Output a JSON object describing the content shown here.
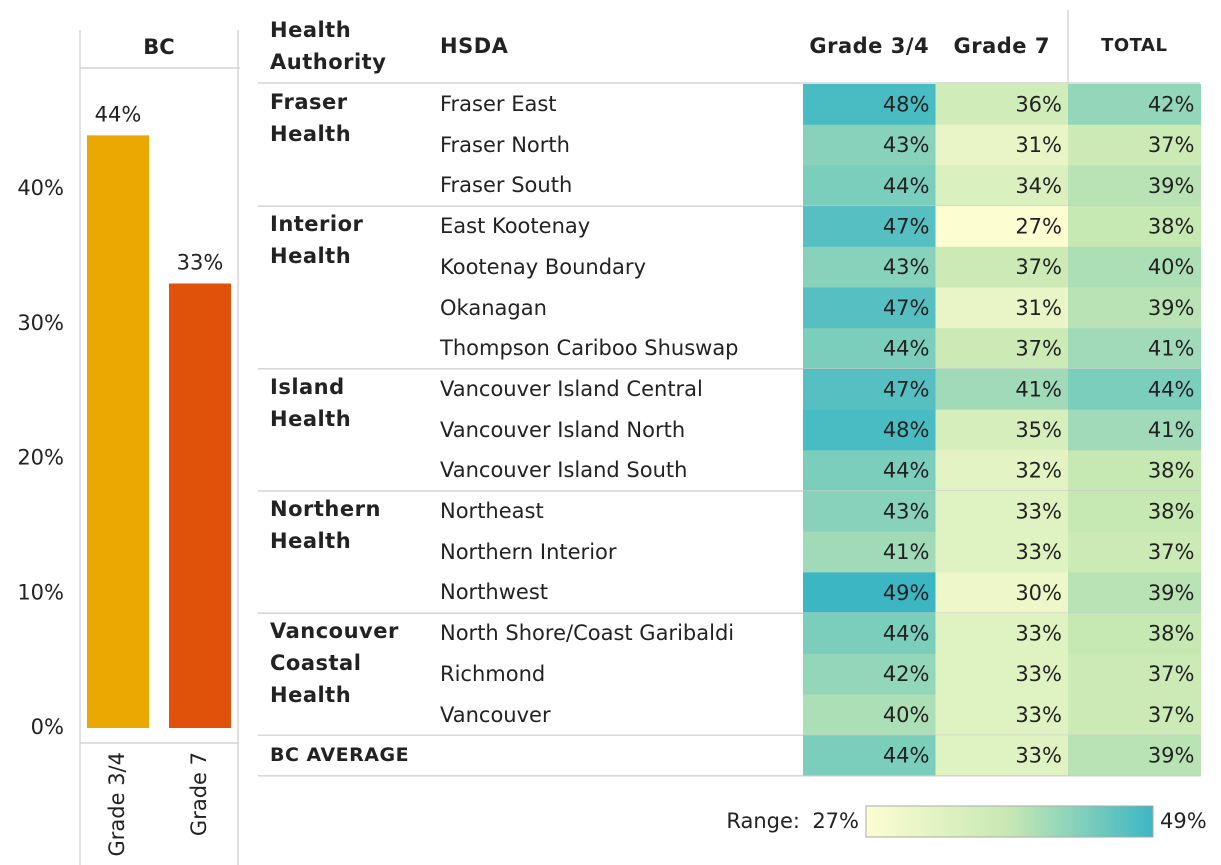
{
  "chart_data": [
    {
      "type": "bar",
      "title": "BC",
      "categories": [
        "Grade 3/4",
        "Grade 7"
      ],
      "values": [
        44,
        33
      ],
      "value_labels": [
        "44%",
        "33%"
      ],
      "colors": [
        "#eaa800",
        "#e0520a"
      ],
      "ylim": [
        0,
        49
      ],
      "yticks": [
        {
          "value": 0,
          "label": "0%"
        },
        {
          "value": 10,
          "label": "10%"
        },
        {
          "value": 20,
          "label": "20%"
        },
        {
          "value": 30,
          "label": "30%"
        },
        {
          "value": 40,
          "label": "40%"
        }
      ]
    },
    {
      "type": "heatmap",
      "header": {
        "group": "Health Authority",
        "row": "HSDA",
        "columns": [
          "Grade 3/4",
          "Grade 7",
          "TOTAL"
        ]
      },
      "groups": [
        {
          "name": "Fraser Health",
          "rows": [
            {
              "name": "Fraser East",
              "values": [
                48,
                36,
                42
              ],
              "value_labels": [
                "48%",
                "36%",
                "42%"
              ]
            },
            {
              "name": "Fraser North",
              "values": [
                43,
                31,
                37
              ],
              "value_labels": [
                "43%",
                "31%",
                "37%"
              ]
            },
            {
              "name": "Fraser South",
              "values": [
                44,
                34,
                39
              ],
              "value_labels": [
                "44%",
                "34%",
                "39%"
              ]
            }
          ]
        },
        {
          "name": "Interior Health",
          "rows": [
            {
              "name": "East Kootenay",
              "values": [
                47,
                27,
                38
              ],
              "value_labels": [
                "47%",
                "27%",
                "38%"
              ]
            },
            {
              "name": "Kootenay Boundary",
              "values": [
                43,
                37,
                40
              ],
              "value_labels": [
                "43%",
                "37%",
                "40%"
              ]
            },
            {
              "name": "Okanagan",
              "values": [
                47,
                31,
                39
              ],
              "value_labels": [
                "47%",
                "31%",
                "39%"
              ]
            },
            {
              "name": "Thompson Cariboo Shuswap",
              "values": [
                44,
                37,
                41
              ],
              "value_labels": [
                "44%",
                "37%",
                "41%"
              ]
            }
          ]
        },
        {
          "name": "Island Health",
          "rows": [
            {
              "name": "Vancouver Island Central",
              "values": [
                47,
                41,
                44
              ],
              "value_labels": [
                "47%",
                "41%",
                "44%"
              ]
            },
            {
              "name": "Vancouver Island North",
              "values": [
                48,
                35,
                41
              ],
              "value_labels": [
                "48%",
                "35%",
                "41%"
              ]
            },
            {
              "name": "Vancouver Island South",
              "values": [
                44,
                32,
                38
              ],
              "value_labels": [
                "44%",
                "32%",
                "38%"
              ]
            }
          ]
        },
        {
          "name": "Northern Health",
          "rows": [
            {
              "name": "Northeast",
              "values": [
                43,
                33,
                38
              ],
              "value_labels": [
                "43%",
                "33%",
                "38%"
              ]
            },
            {
              "name": "Northern Interior",
              "values": [
                41,
                33,
                37
              ],
              "value_labels": [
                "41%",
                "33%",
                "37%"
              ]
            },
            {
              "name": "Northwest",
              "values": [
                49,
                30,
                39
              ],
              "value_labels": [
                "49%",
                "30%",
                "39%"
              ]
            }
          ]
        },
        {
          "name": "Vancouver Coastal Health",
          "rows": [
            {
              "name": "North Shore/Coast Garibaldi",
              "values": [
                44,
                33,
                38
              ],
              "value_labels": [
                "44%",
                "33%",
                "38%"
              ]
            },
            {
              "name": "Richmond",
              "values": [
                42,
                33,
                37
              ],
              "value_labels": [
                "42%",
                "33%",
                "37%"
              ]
            },
            {
              "name": "Vancouver",
              "values": [
                40,
                33,
                37
              ],
              "value_labels": [
                "40%",
                "33%",
                "37%"
              ]
            }
          ]
        }
      ],
      "total_row": {
        "name": "BC AVERAGE",
        "values": [
          44,
          33,
          39
        ],
        "value_labels": [
          "44%",
          "33%",
          "39%"
        ]
      },
      "colorbar": {
        "label": "Range:",
        "min": {
          "value": 27,
          "label": "27%"
        },
        "max": {
          "value": 49,
          "label": "49%"
        },
        "colors": [
          "#fdfdd2",
          "#c6e8b3",
          "#3db6c4"
        ]
      }
    }
  ]
}
